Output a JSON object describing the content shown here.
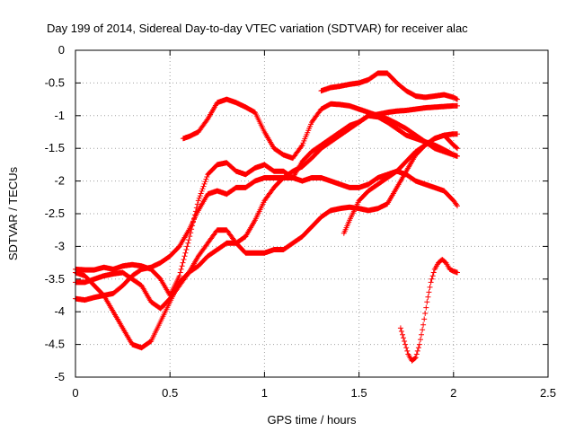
{
  "chart_data": {
    "type": "scatter",
    "title": "Day 199 of 2014, Sidereal Day-to-day VTEC variation (SDTVAR) for receiver alac",
    "xlabel": "GPS time / hours",
    "ylabel": "SDTVAR / TECUs",
    "xlim": [
      0,
      2.5
    ],
    "ylim": [
      -5,
      0
    ],
    "xticks": [
      "0",
      "0.5",
      "1",
      "1.5",
      "2",
      "2.5"
    ],
    "yticks": [
      "0",
      "-0.5",
      "-1",
      "-1.5",
      "-2",
      "-2.5",
      "-3",
      "-3.5",
      "-4",
      "-4.5",
      "-5"
    ],
    "grid": true,
    "marker": "+",
    "color": "#ff0000",
    "series": [
      {
        "x": [
          0,
          0.05,
          0.1,
          0.15,
          0.2,
          0.25,
          0.3,
          0.35,
          0.4,
          0.45,
          0.5,
          0.55,
          0.6,
          0.65,
          0.7,
          0.75,
          0.8,
          0.85,
          0.9,
          0.95,
          1.0,
          1.05,
          1.1,
          1.15,
          1.2,
          1.25,
          1.3,
          1.35,
          1.4,
          1.45,
          1.5,
          1.55,
          1.6,
          1.65,
          1.7,
          1.75,
          1.8,
          1.85,
          1.9,
          1.95,
          2.0,
          2.02
        ],
        "y": [
          -3.35,
          -3.36,
          -3.36,
          -3.32,
          -3.35,
          -3.3,
          -3.28,
          -3.3,
          -3.35,
          -3.5,
          -3.75,
          -3.45,
          -2.9,
          -2.3,
          -1.9,
          -1.75,
          -1.72,
          -1.85,
          -1.9,
          -1.8,
          -1.75,
          -1.85,
          -1.85,
          -1.95,
          -2.0,
          -1.95,
          -1.95,
          -2.0,
          -2.05,
          -2.1,
          -2.1,
          -2.05,
          -1.95,
          -1.9,
          -1.85,
          -1.9,
          -2.0,
          -2.05,
          -2.1,
          -2.15,
          -2.3,
          -2.38
        ]
      },
      {
        "x": [
          0,
          0.05,
          0.1,
          0.15,
          0.2,
          0.25,
          0.3,
          0.35,
          0.4,
          0.45,
          0.5,
          0.55,
          0.6,
          0.65,
          0.7,
          0.75,
          0.8,
          0.85,
          0.9,
          0.95,
          1.0,
          1.05,
          1.1,
          1.15,
          1.2,
          1.25,
          1.3,
          1.35,
          1.4,
          1.45,
          1.5,
          1.55,
          1.6,
          1.65,
          1.7,
          1.75,
          1.8,
          1.85,
          1.9,
          1.95,
          2.0,
          2.02
        ],
        "y": [
          -3.8,
          -3.82,
          -3.78,
          -3.75,
          -3.72,
          -3.6,
          -3.45,
          -3.35,
          -3.32,
          -3.25,
          -3.15,
          -3.0,
          -2.75,
          -2.45,
          -2.2,
          -2.15,
          -2.2,
          -2.1,
          -2.1,
          -2.0,
          -1.95,
          -1.95,
          -1.95,
          -1.95,
          -1.7,
          -1.55,
          -1.45,
          -1.35,
          -1.25,
          -1.15,
          -1.1,
          -1.0,
          -0.98,
          -0.95,
          -0.93,
          -0.92,
          -0.9,
          -0.88,
          -0.87,
          -0.86,
          -0.85,
          -0.85
        ]
      },
      {
        "x": [
          0,
          0.05,
          0.1,
          0.15,
          0.2,
          0.25,
          0.3,
          0.35,
          0.4,
          0.45,
          0.5,
          0.55,
          0.6,
          0.65,
          0.7,
          0.75,
          0.8,
          0.85,
          0.9,
          0.95,
          1.0,
          1.05,
          1.1,
          1.15,
          1.2,
          1.25,
          1.3,
          1.35,
          1.4,
          1.45,
          1.5,
          1.55,
          1.6,
          1.65,
          1.7,
          1.75,
          1.8,
          1.85,
          1.9,
          1.95,
          2.0,
          2.02
        ],
        "y": [
          -3.55,
          -3.55,
          -3.5,
          -3.45,
          -3.42,
          -3.4,
          -3.5,
          -3.6,
          -3.85,
          -3.95,
          -3.8,
          -3.6,
          -3.4,
          -3.3,
          -3.15,
          -3.05,
          -2.95,
          -2.95,
          -2.85,
          -2.6,
          -2.3,
          -2.1,
          -1.95,
          -1.85,
          -1.78,
          -1.65,
          -1.5,
          -1.4,
          -1.3,
          -1.2,
          -1.1,
          -1.0,
          -1.02,
          -1.1,
          -1.2,
          -1.3,
          -1.35,
          -1.4,
          -1.45,
          -1.52,
          -1.6,
          -1.62
        ]
      },
      {
        "x": [
          0,
          0.05,
          0.1,
          0.15,
          0.2,
          0.25,
          0.3,
          0.35,
          0.4,
          0.45,
          0.5,
          0.55,
          0.6,
          0.65,
          0.7,
          0.75,
          0.8,
          0.85,
          0.9,
          0.95,
          1.0,
          1.05,
          1.1,
          1.15,
          1.2,
          1.25,
          1.3,
          1.35,
          1.4,
          1.45,
          1.5,
          1.55,
          1.6,
          1.65,
          1.7,
          1.75,
          1.8,
          1.85,
          1.9,
          1.95,
          2.0,
          2.02
        ],
        "y": [
          -3.4,
          -3.45,
          -3.6,
          -3.75,
          -4.0,
          -4.25,
          -4.5,
          -4.55,
          -4.45,
          -4.15,
          -3.85,
          -3.55,
          -3.4,
          -3.15,
          -2.95,
          -2.75,
          -2.75,
          -2.95,
          -3.1,
          -3.1,
          -3.1,
          -3.05,
          -3.05,
          -2.95,
          -2.85,
          -2.7,
          -2.55,
          -2.45,
          -2.42,
          -2.4,
          -2.42,
          -2.45,
          -2.42,
          -2.35,
          -2.1,
          -1.85,
          -1.6,
          -1.45,
          -1.35,
          -1.3,
          -1.28,
          -1.28
        ]
      },
      {
        "x": [
          0.57,
          0.6,
          0.65,
          0.7,
          0.75,
          0.8,
          0.85,
          0.9,
          0.95,
          1.0,
          1.05,
          1.1,
          1.15,
          1.2,
          1.25,
          1.3,
          1.35,
          1.4,
          1.45,
          1.5,
          1.55,
          1.6,
          1.65,
          1.7,
          1.75,
          1.8,
          1.85,
          1.9,
          1.95,
          2.0,
          2.02
        ],
        "y": [
          -1.35,
          -1.32,
          -1.25,
          -1.05,
          -0.8,
          -0.75,
          -0.8,
          -0.87,
          -0.95,
          -1.25,
          -1.5,
          -1.6,
          -1.65,
          -1.45,
          -1.1,
          -0.9,
          -0.82,
          -0.83,
          -0.85,
          -0.9,
          -0.95,
          -1.0,
          -1.05,
          -1.12,
          -1.2,
          -1.3,
          -1.4,
          -1.5,
          -1.55,
          -1.6,
          -1.62
        ]
      },
      {
        "x": [
          1.3,
          1.35,
          1.4,
          1.45,
          1.5,
          1.55,
          1.6,
          1.65,
          1.7,
          1.75,
          1.8,
          1.85,
          1.9,
          1.95,
          2.0,
          2.02
        ],
        "y": [
          -0.62,
          -0.57,
          -0.55,
          -0.52,
          -0.5,
          -0.45,
          -0.35,
          -0.35,
          -0.5,
          -0.62,
          -0.7,
          -0.72,
          -0.7,
          -0.68,
          -0.72,
          -0.75
        ]
      },
      {
        "x": [
          1.42,
          1.45,
          1.5,
          1.55,
          1.6,
          1.65,
          1.7,
          1.75,
          1.8,
          1.85,
          1.9,
          1.95,
          2.0,
          2.02
        ],
        "y": [
          -2.8,
          -2.6,
          -2.3,
          -2.15,
          -2.05,
          -1.95,
          -1.85,
          -1.7,
          -1.55,
          -1.45,
          -1.35,
          -1.3,
          -1.45,
          -1.5
        ]
      },
      {
        "x": [
          1.72,
          1.74,
          1.76,
          1.78,
          1.8,
          1.82,
          1.84,
          1.86,
          1.88,
          1.9,
          1.92,
          1.94,
          1.96,
          1.98,
          2.0,
          2.02
        ],
        "y": [
          -4.25,
          -4.45,
          -4.65,
          -4.75,
          -4.7,
          -4.5,
          -4.2,
          -3.85,
          -3.55,
          -3.35,
          -3.25,
          -3.2,
          -3.25,
          -3.35,
          -3.38,
          -3.4
        ]
      }
    ]
  }
}
